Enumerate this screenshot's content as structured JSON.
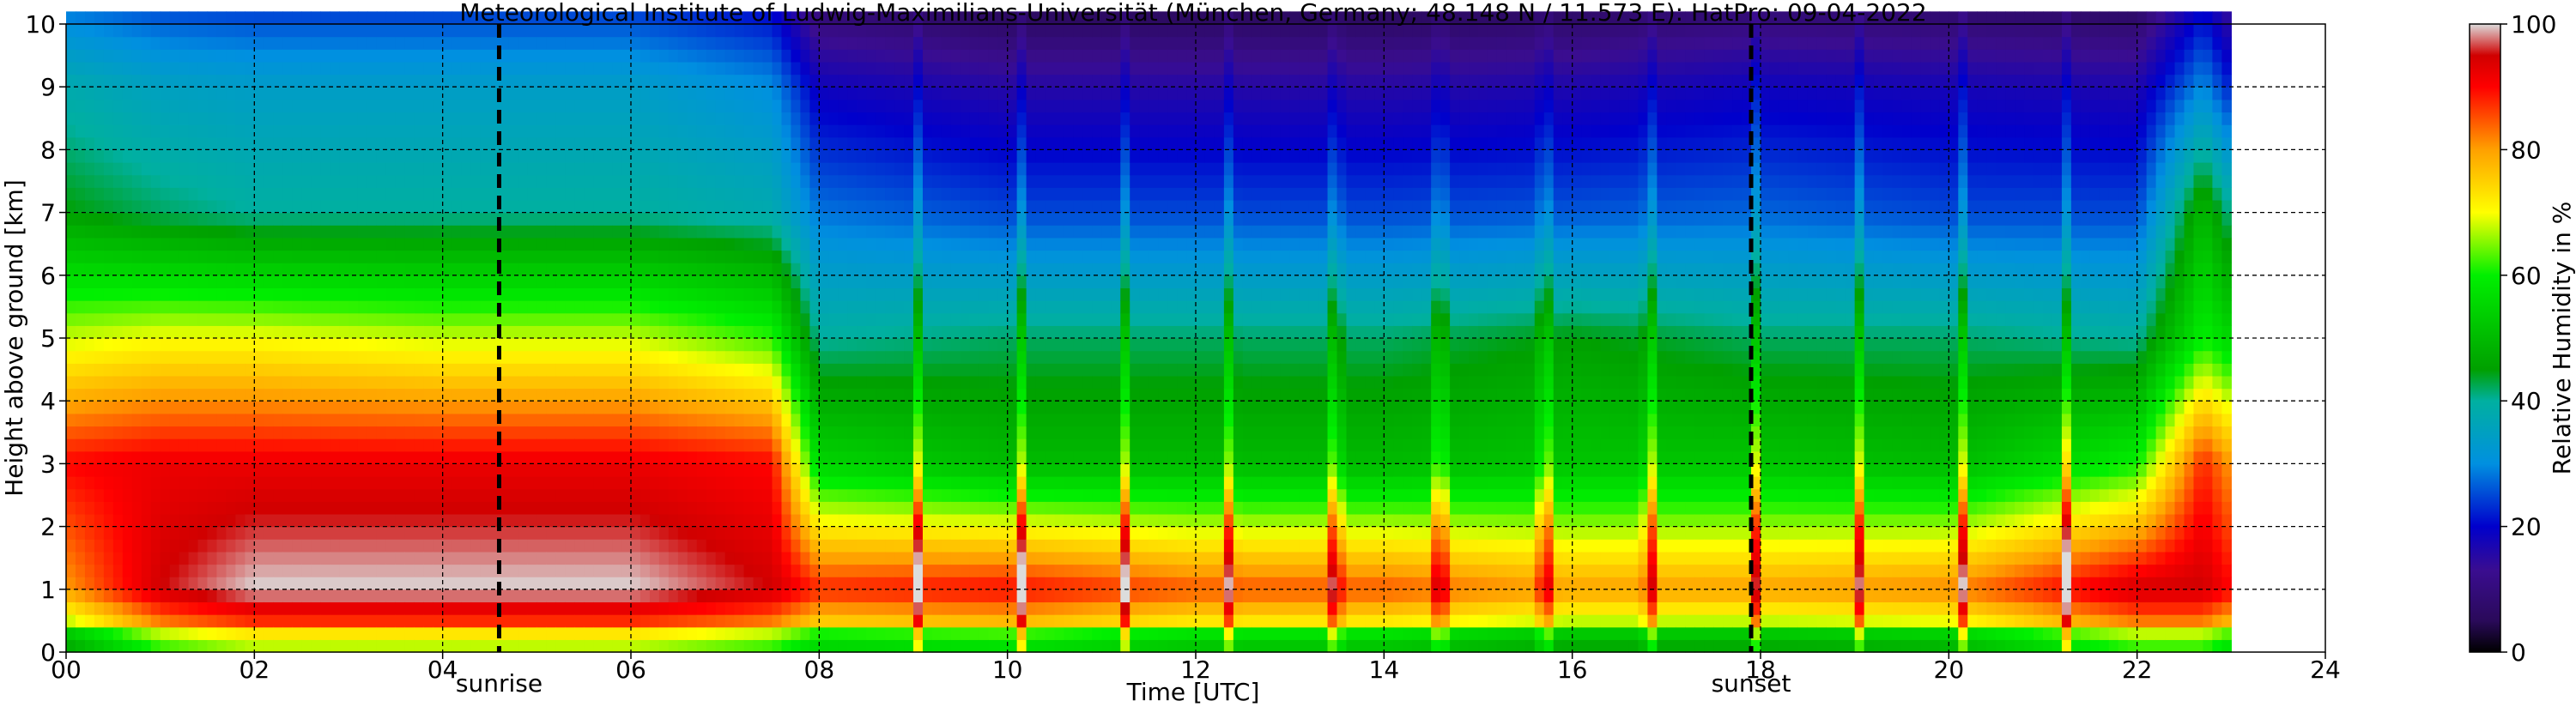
{
  "chart_data": {
    "type": "heatmap",
    "title": "Meteorological Institute of Ludwig-Maximilians-Universität (München, Germany; 48.148 N / 11.573 E):    HatPro: 09-04-2022",
    "xlabel": "Time [UTC]",
    "ylabel": "Height above ground [km]",
    "xlim": [
      0,
      24
    ],
    "ylim": [
      0,
      10
    ],
    "data_xlim": [
      0,
      23
    ],
    "xticks": [
      "00",
      "02",
      "04",
      "06",
      "08",
      "10",
      "12",
      "14",
      "16",
      "18",
      "20",
      "22",
      "24"
    ],
    "yticks": [
      "0",
      "1",
      "2",
      "3",
      "4",
      "5",
      "6",
      "7",
      "8",
      "9",
      "10"
    ],
    "grid": true,
    "markers": [
      {
        "label": "sunrise",
        "x": 4.6
      },
      {
        "label": "sunset",
        "x": 17.9
      }
    ],
    "colorbar": {
      "label": "Relative Humidity in %",
      "range": [
        0,
        100
      ],
      "ticks": [
        "0",
        "20",
        "40",
        "60",
        "80",
        "100"
      ],
      "colors": {
        "0": "#000000",
        "5": "#2a0a5a",
        "12": "#3a0d90",
        "20": "#0000cc",
        "30": "#0090e0",
        "40": "#00b0a0",
        "45": "#00a000",
        "60": "#00f000",
        "70": "#ffff00",
        "80": "#ffa000",
        "90": "#ff0000",
        "95": "#d00000",
        "100": "#dcdcdc"
      }
    },
    "humidity_profile_estimates": {
      "time_utc": [
        0,
        1,
        2,
        4,
        6,
        7.5,
        8,
        10,
        12,
        14,
        16,
        18,
        20,
        22,
        22.7,
        23
      ],
      "rh_at_1km": [
        80,
        95,
        100,
        100,
        100,
        95,
        88,
        90,
        85,
        85,
        80,
        80,
        82,
        95,
        95,
        90
      ],
      "rh_at_3km": [
        90,
        92,
        92,
        92,
        92,
        90,
        55,
        50,
        50,
        50,
        52,
        52,
        50,
        60,
        88,
        80
      ],
      "rh_at_5km": [
        68,
        70,
        70,
        68,
        68,
        62,
        40,
        42,
        42,
        42,
        45,
        42,
        42,
        40,
        60,
        55
      ],
      "rh_at_7km": [
        45,
        42,
        40,
        40,
        40,
        38,
        28,
        25,
        25,
        25,
        26,
        27,
        25,
        25,
        50,
        40
      ],
      "rh_at_9km": [
        38,
        35,
        34,
        34,
        34,
        30,
        18,
        15,
        15,
        15,
        16,
        18,
        17,
        16,
        30,
        22
      ]
    }
  }
}
